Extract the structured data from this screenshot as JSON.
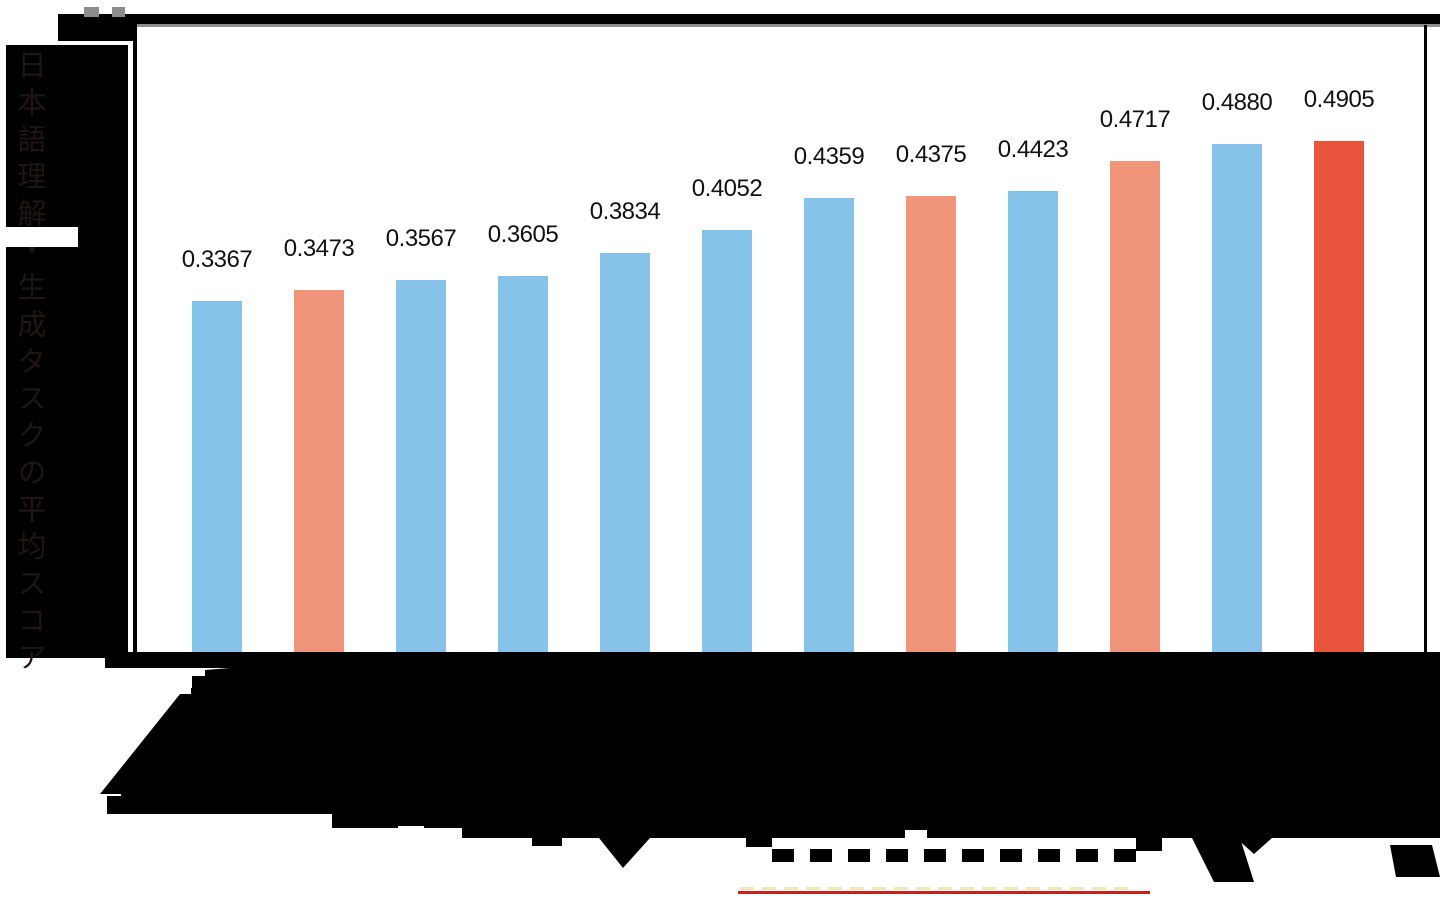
{
  "colors": {
    "bar_blue": "#87C3E8",
    "bar_salmon": "#F0957A",
    "bar_red": "#E8543C",
    "plot_background": "#FFFFFF",
    "surround_dark": "#000000",
    "value_label_text": "#111111",
    "axis_text_dim": "#201511",
    "spine_black": "#000000",
    "spine_gray_line": "#8F8F8F",
    "top_squares_gray": "#8C8C8C",
    "underline_red": "#C8221A",
    "underline_dashes_cream": "#F0E7C0"
  },
  "chart_data": {
    "type": "bar",
    "title": "",
    "xlabel": "",
    "ylabel": "日本語理解・生成タスクの平均スコア",
    "ylim": [
      0,
      0.6
    ],
    "grid": false,
    "legend": null,
    "values": [
      0.3367,
      0.3473,
      0.3567,
      0.3605,
      0.3834,
      0.4052,
      0.4359,
      0.4375,
      0.4423,
      0.4717,
      0.488,
      0.4905
    ],
    "value_labels": [
      "0.3367",
      "0.3473",
      "0.3567",
      "0.3605",
      "0.3834",
      "0.4052",
      "0.4359",
      "0.4375",
      "0.4423",
      "0.4717",
      "0.4880",
      "0.4905"
    ],
    "bar_colors": [
      "blue",
      "salmon",
      "blue",
      "blue",
      "blue",
      "blue",
      "blue",
      "salmon",
      "blue",
      "salmon",
      "blue",
      "red"
    ],
    "categories": [
      "",
      "",
      "",
      "",
      "",
      "",
      "",
      "",
      "",
      "",
      "",
      ""
    ],
    "x_tick_labels_note": "12 rotated x-axis tick labels are rendered black-on-black and are illegible in the screenshot"
  }
}
